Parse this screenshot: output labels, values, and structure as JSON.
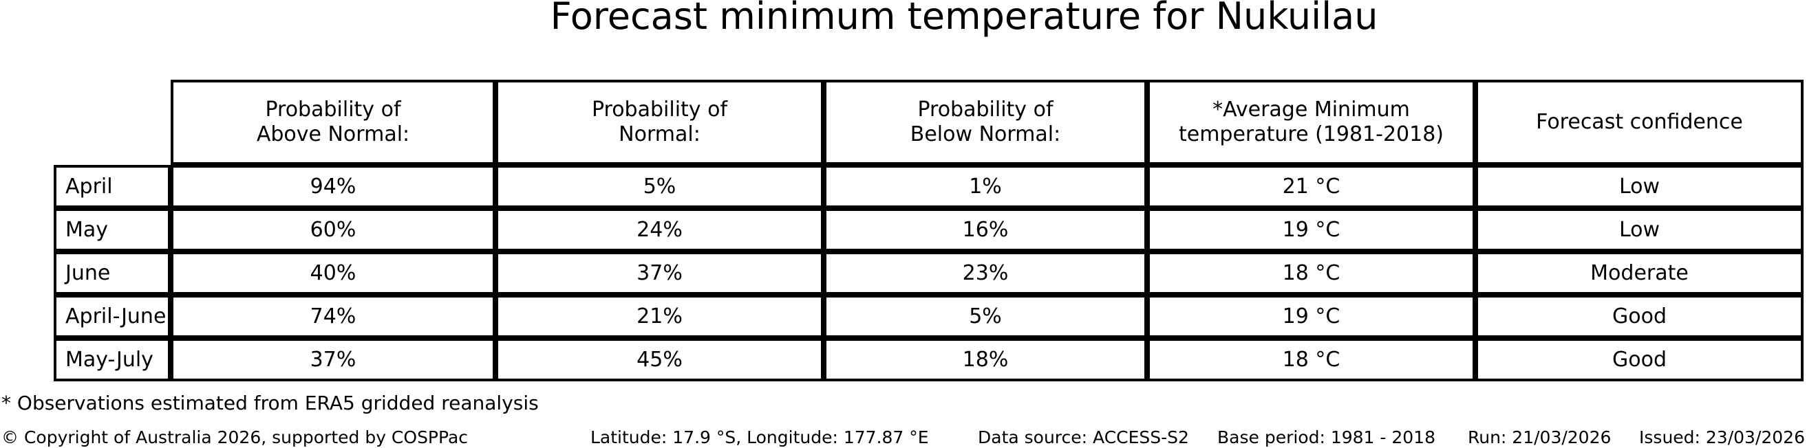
{
  "title": "Forecast minimum temperature for Nukuilau",
  "table": {
    "headers": {
      "above": "Probability of\nAbove Normal:",
      "normal": "Probability of\nNormal:",
      "below": "Probability of\nBelow Normal:",
      "avg_min": "*Average Minimum\ntemperature (1981-2018)",
      "confidence": "Forecast confidence"
    },
    "rows": [
      {
        "label": "April",
        "above": "94%",
        "normal": "5%",
        "below": "1%",
        "avg_min": "21 °C",
        "confidence": "Low"
      },
      {
        "label": "May",
        "above": "60%",
        "normal": "24%",
        "below": "16%",
        "avg_min": "19 °C",
        "confidence": "Low"
      },
      {
        "label": "June",
        "above": "40%",
        "normal": "37%",
        "below": "23%",
        "avg_min": "18 °C",
        "confidence": "Moderate"
      },
      {
        "label": "April-June",
        "above": "74%",
        "normal": "21%",
        "below": "5%",
        "avg_min": "19 °C",
        "confidence": "Good"
      },
      {
        "label": "May-July",
        "above": "37%",
        "normal": "45%",
        "below": "18%",
        "avg_min": "18 °C",
        "confidence": "Good"
      }
    ]
  },
  "footnote": "* Observations estimated from ERA5 gridded reanalysis",
  "footer": {
    "copyright": "© Copyright of Australia 2026, supported by COSPPac",
    "location": "Latitude: 17.9 °S, Longitude: 177.87 °E",
    "data_source": "Data source: ACCESS-S2",
    "base_period": "Base period: 1981 - 2018",
    "run": "Run: 21/03/2026",
    "issued": "Issued: 23/03/2026"
  },
  "colors": {
    "text": "#000000",
    "background": "#ffffff",
    "border": "#000000"
  },
  "chart_data": {
    "type": "table",
    "title": "Forecast minimum temperature for Nukuilau",
    "columns": [
      "",
      "Probability of Above Normal:",
      "Probability of Normal:",
      "Probability of Below Normal:",
      "*Average Minimum temperature (1981-2018)",
      "Forecast confidence"
    ],
    "rows": [
      [
        "April",
        "94%",
        "5%",
        "1%",
        "21 °C",
        "Low"
      ],
      [
        "May",
        "60%",
        "24%",
        "16%",
        "19 °C",
        "Low"
      ],
      [
        "June",
        "40%",
        "37%",
        "23%",
        "18 °C",
        "Moderate"
      ],
      [
        "April-June",
        "74%",
        "21%",
        "5%",
        "19 °C",
        "Good"
      ],
      [
        "May-July",
        "37%",
        "45%",
        "18%",
        "18 °C",
        "Good"
      ]
    ],
    "units": {
      "probabilities": "%",
      "temperature": "°C"
    },
    "legend_position": "none",
    "grid": "table-borders"
  }
}
